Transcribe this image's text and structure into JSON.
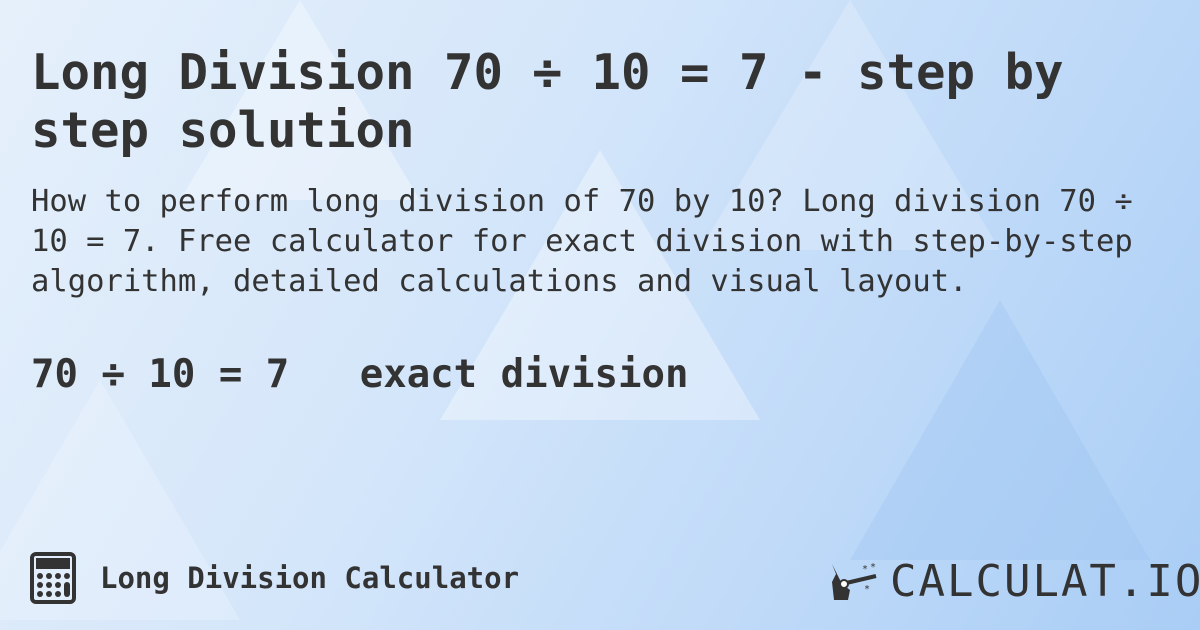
{
  "header": {
    "title": "Long Division 70 ÷ 10 = 7 - step by step solution"
  },
  "description": "How to perform long division of 70 by 10? Long division 70 ÷ 10 = 7. Free calculator for exact division with step-by-step algorithm, detailed calculations and visual layout.",
  "result": {
    "equation": "70 ÷ 10 = 7",
    "type": "exact division"
  },
  "footer": {
    "icon": "calculator-icon",
    "label": "Long Division Calculator"
  },
  "logo": {
    "text": "CALCULAT.IO",
    "icon": "magic-hand-wand-icon"
  },
  "colors": {
    "text": "#333333",
    "background": "#cfe3f9"
  }
}
